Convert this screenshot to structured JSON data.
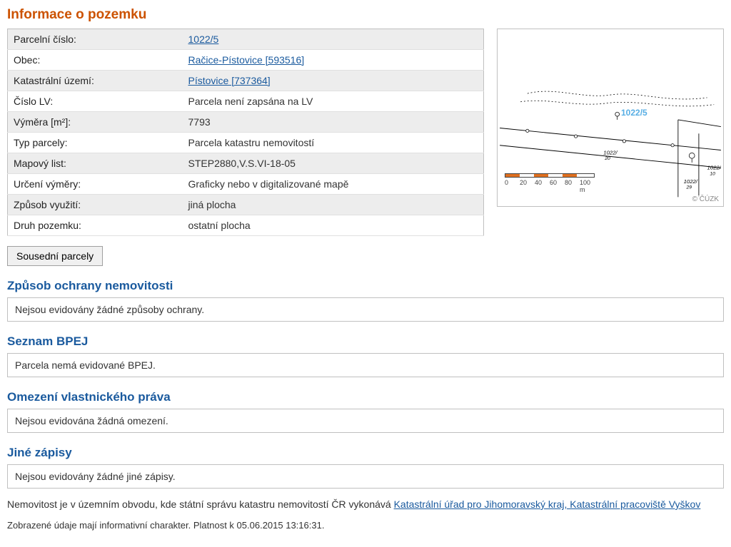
{
  "page_title": "Informace o pozemku",
  "info_rows": [
    {
      "label": "Parcelní číslo:",
      "value": "1022/5",
      "is_link": true
    },
    {
      "label": "Obec:",
      "value": "Račice-Pístovice [593516]",
      "is_link": true
    },
    {
      "label": "Katastrální území:",
      "value": "Pístovice [737364]",
      "is_link": true
    },
    {
      "label": "Číslo LV:",
      "value": "Parcela není zapsána na LV",
      "is_link": false
    },
    {
      "label": "Výměra [m²]:",
      "value": "7793",
      "is_link": false
    },
    {
      "label": "Typ parcely:",
      "value": "Parcela katastru nemovitostí",
      "is_link": false
    },
    {
      "label": "Mapový list:",
      "value": "STEP2880,V.S.VI-18-05",
      "is_link": false
    },
    {
      "label": "Určení výměry:",
      "value": "Graficky nebo v digitalizované mapě",
      "is_link": false
    },
    {
      "label": "Způsob využití:",
      "value": "jiná plocha",
      "is_link": false
    },
    {
      "label": "Druh pozemku:",
      "value": "ostatní plocha",
      "is_link": false
    }
  ],
  "neighbor_button": "Sousední parcely",
  "sections": [
    {
      "title": "Způsob ochrany nemovitosti",
      "body": "Nejsou evidovány žádné způsoby ochrany."
    },
    {
      "title": "Seznam BPEJ",
      "body": "Parcela nemá evidované BPEJ."
    },
    {
      "title": "Omezení vlastnického práva",
      "body": "Nejsou evidována žádná omezení."
    },
    {
      "title": "Jiné zápisy",
      "body": "Nejsou evidovány žádné jiné zápisy."
    }
  ],
  "footer": {
    "prefix": "Nemovitost je v územním obvodu, kde státní správu katastru nemovitostí ČR vykonává ",
    "link": "Katastrální úřad pro Jihomoravský kraj, Katastrální pracoviště Vyškov"
  },
  "timestamp": "Zobrazené údaje mají informativní charakter. Platnost k 05.06.2015 13:16:31.",
  "map": {
    "parcel_label": "1022/5",
    "copyright": "© ČÚZK",
    "scale_labels": [
      "0",
      "20",
      "40",
      "60",
      "80",
      "100 m"
    ],
    "scale_colors": {
      "orange": "#e07020",
      "white": "#ffffff",
      "border": "#444444"
    },
    "colors": {
      "line": "#000000",
      "dotted": "#000000",
      "parcel_text": "#3aa0e0",
      "background": "#ffffff"
    }
  },
  "style": {
    "title_color": "#cc5200",
    "section_title_color": "#1a5a9e",
    "link_color": "#1a5a9e",
    "row_odd_bg": "#ededed",
    "row_even_bg": "#ffffff",
    "border_color": "#c0c0c0",
    "body_font": "Segoe UI"
  }
}
